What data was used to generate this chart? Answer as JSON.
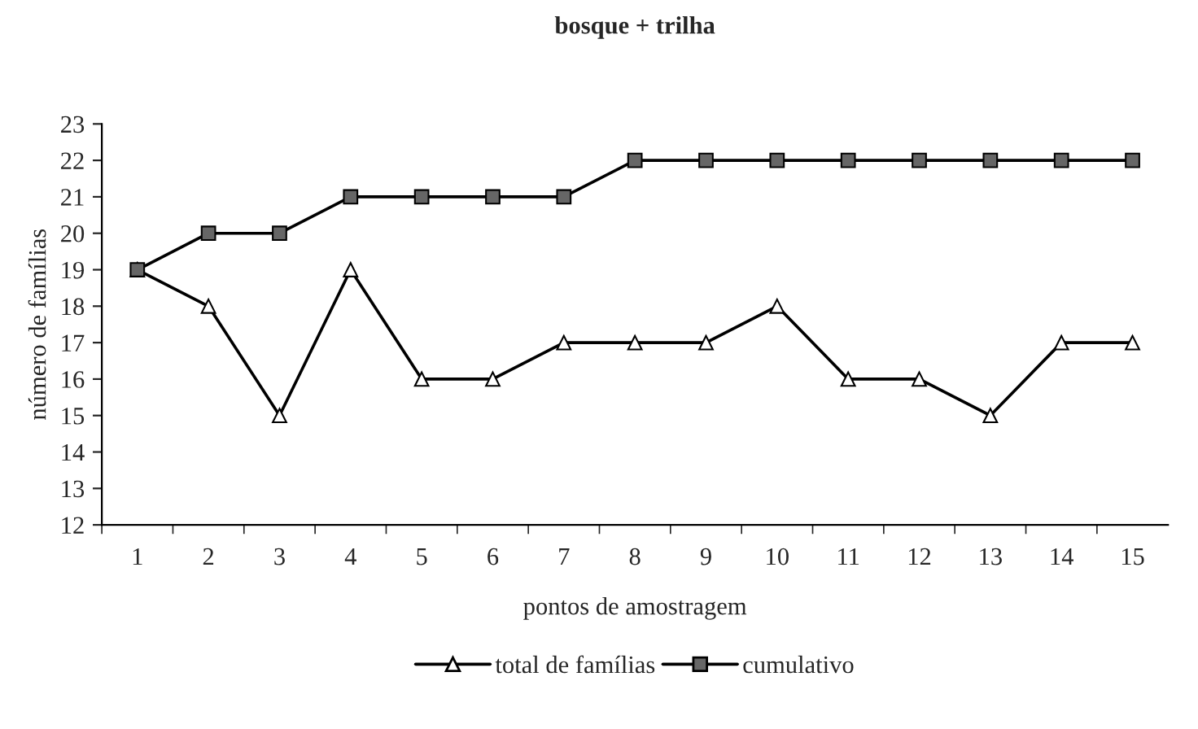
{
  "chart_data": {
    "type": "line",
    "title": "bosque + trilha",
    "xlabel": "pontos de amostragem",
    "ylabel": "número de famílias",
    "categories": [
      "1",
      "2",
      "3",
      "4",
      "5",
      "6",
      "7",
      "8",
      "9",
      "10",
      "11",
      "12",
      "13",
      "14",
      "15"
    ],
    "series": [
      {
        "name": "total de famílias",
        "color": "#000000",
        "marker": "triangle",
        "values": [
          19,
          18,
          15,
          19,
          16,
          16,
          17,
          17,
          17,
          18,
          16,
          16,
          15,
          17,
          17
        ]
      },
      {
        "name": "cumulativo",
        "color": "#000000",
        "marker": "square",
        "values": [
          19,
          20,
          20,
          21,
          21,
          21,
          21,
          22,
          22,
          22,
          22,
          22,
          22,
          22,
          22
        ]
      }
    ],
    "ylim": [
      12,
      23
    ],
    "yticks": [
      12,
      13,
      14,
      15,
      16,
      17,
      18,
      19,
      20,
      21,
      22,
      23
    ],
    "grid": false,
    "legend": "bottom",
    "line_style": "solid"
  }
}
